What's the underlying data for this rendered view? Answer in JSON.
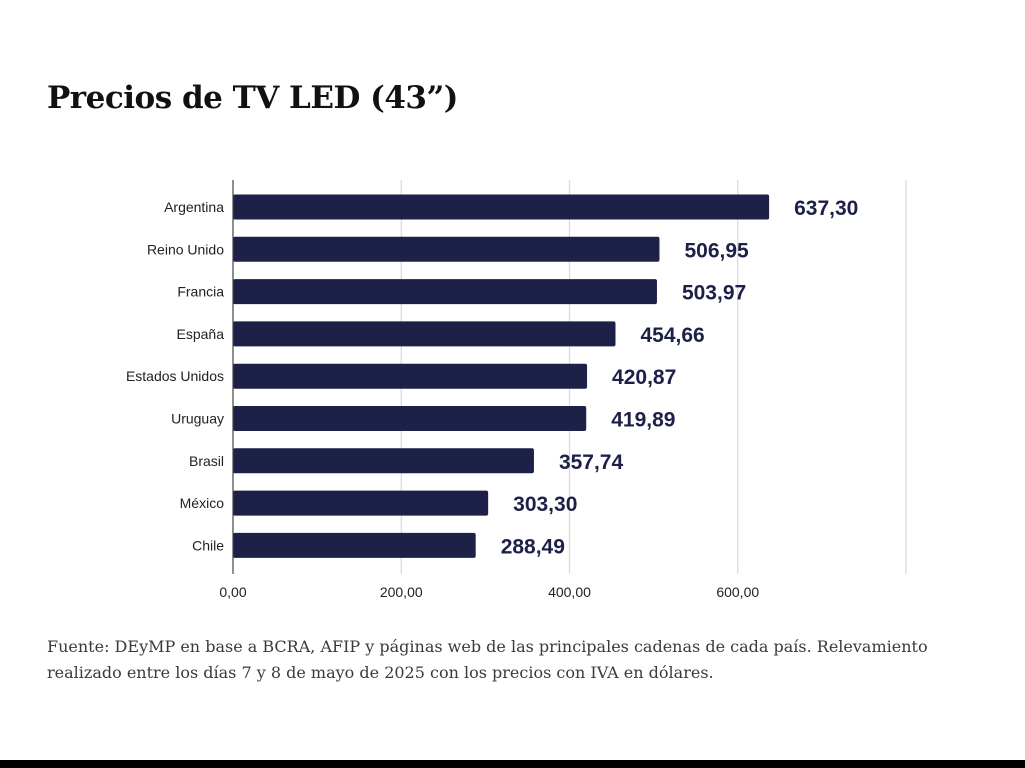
{
  "title": "Precios de TV LED (43”)",
  "source": "Fuente: DEyMP en base a BCRA, AFIP y páginas web de las principales cadenas de cada país. Relevamiento realizado entre los días 7 y 8 de mayo de 2025 con los precios con IVA en dólares.",
  "colors": {
    "bar": "#1d2147",
    "grid": "#d9d9d9",
    "axis": "#444444"
  },
  "chart_data": {
    "type": "bar",
    "orientation": "horizontal",
    "categories": [
      "Argentina",
      "Reino Unido",
      "Francia",
      "España",
      "Estados Unidos",
      "Uruguay",
      "Brasil",
      "México",
      "Chile"
    ],
    "values": [
      637.3,
      506.95,
      503.97,
      454.66,
      420.87,
      419.89,
      357.74,
      303.3,
      288.49
    ],
    "value_labels": [
      "637,30",
      "506,95",
      "503,97",
      "454,66",
      "420,87",
      "419,89",
      "357,74",
      "303,30",
      "288,49"
    ],
    "xlim": [
      0,
      800
    ],
    "ticks": [
      0,
      200,
      400,
      600
    ],
    "tick_labels": [
      "0,00",
      "200,00",
      "400,00",
      "600,00"
    ],
    "gridlines": [
      200,
      400,
      600,
      800
    ],
    "grid": true,
    "legend": false
  }
}
